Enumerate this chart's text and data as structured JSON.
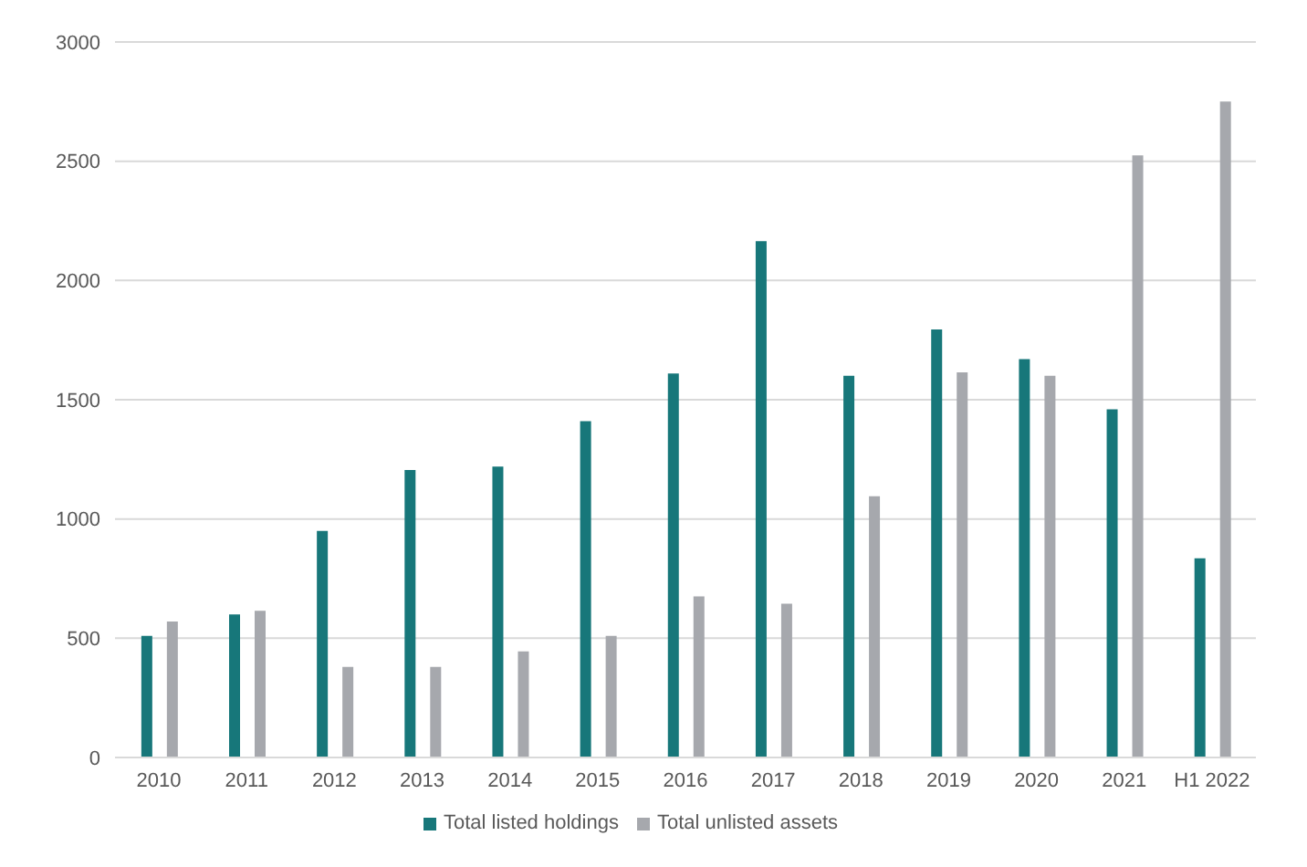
{
  "chart_data": {
    "type": "bar",
    "categories": [
      "2010",
      "2011",
      "2012",
      "2013",
      "2014",
      "2015",
      "2016",
      "2017",
      "2018",
      "2019",
      "2020",
      "2021",
      "H1 2022"
    ],
    "series": [
      {
        "name": "Total listed holdings",
        "color": "#17777a",
        "values": [
          510,
          600,
          950,
          1205,
          1220,
          1410,
          1610,
          2165,
          1600,
          1795,
          1670,
          1460,
          835
        ]
      },
      {
        "name": "Total unlisted assets",
        "color": "#a6a8ad",
        "values": [
          570,
          615,
          380,
          380,
          445,
          510,
          675,
          645,
          1095,
          1615,
          1600,
          2525,
          2750
        ]
      }
    ],
    "ylim": [
      0,
      3000
    ],
    "yticks": [
      0,
      500,
      1000,
      1500,
      2000,
      2500,
      3000
    ],
    "grid": "y",
    "legend": "bottom"
  }
}
